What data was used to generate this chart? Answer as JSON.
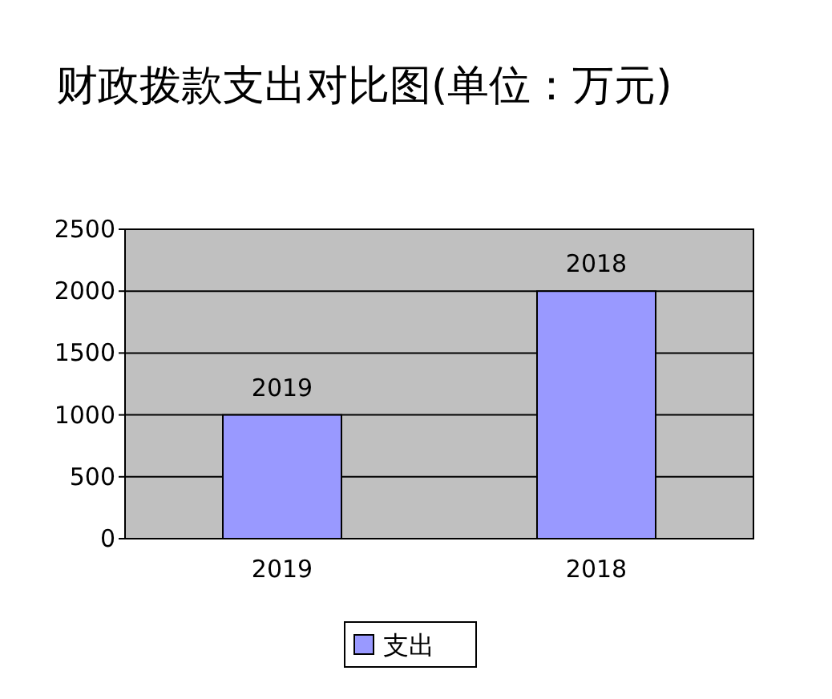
{
  "chart_data": {
    "type": "bar",
    "title": "财政拨款支出对比图(单位：万元)",
    "categories": [
      "2019",
      "2018"
    ],
    "series": [
      {
        "name": "支出",
        "color": "#9999ff",
        "values": [
          1000,
          2000
        ]
      }
    ],
    "ylim": [
      0,
      2500
    ],
    "yticks": [
      0,
      500,
      1000,
      1500,
      2000,
      2500
    ],
    "grid": "y",
    "legend": "bottom",
    "annotations": [
      {
        "text": "2019",
        "x": "2019",
        "y": 1000
      },
      {
        "text": "2018",
        "x": "2018",
        "y": 2000
      }
    ]
  }
}
